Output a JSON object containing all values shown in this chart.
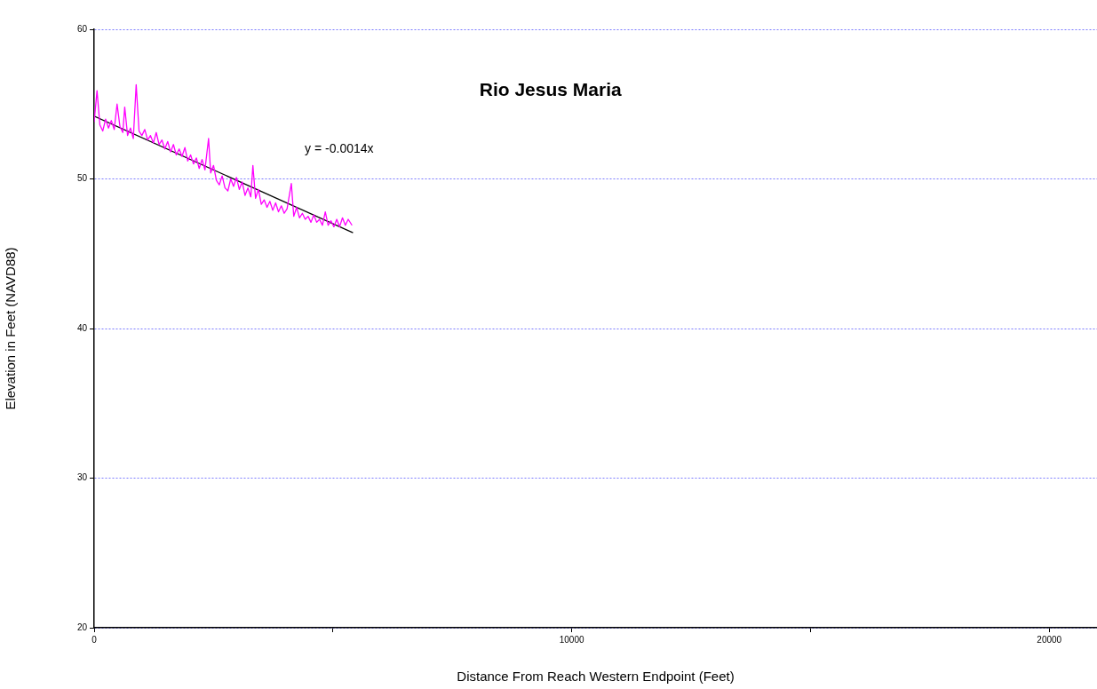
{
  "chart_data": {
    "type": "line",
    "title": "Rio Jesus Maria",
    "xlabel": "Distance From Reach Western Endpoint (Feet)",
    "ylabel": "Elevation in Feet (NAVD88)",
    "x": [
      0,
      60,
      120,
      180,
      240,
      300,
      360,
      420,
      480,
      540,
      600,
      640,
      700,
      760,
      820,
      880,
      940,
      1000,
      1060,
      1120,
      1180,
      1240,
      1300,
      1360,
      1420,
      1480,
      1540,
      1600,
      1660,
      1720,
      1780,
      1840,
      1900,
      1960,
      2020,
      2080,
      2140,
      2200,
      2260,
      2320,
      2396,
      2440,
      2500,
      2560,
      2620,
      2680,
      2740,
      2800,
      2860,
      2920,
      2980,
      3040,
      3100,
      3160,
      3220,
      3280,
      3324,
      3380,
      3440,
      3500,
      3560,
      3620,
      3680,
      3740,
      3800,
      3860,
      3920,
      3980,
      4040,
      4129,
      4180,
      4240,
      4300,
      4360,
      4420,
      4480,
      4540,
      4600,
      4660,
      4720,
      4780,
      4840,
      4900,
      4960,
      5020,
      5080,
      5140,
      5200,
      5260,
      5320,
      5400
    ],
    "series": [
      {
        "color": "#ff00ff",
        "values": [
          53.8,
          55.9,
          53.6,
          53.2,
          54.0,
          53.4,
          53.9,
          53.3,
          55.0,
          53.5,
          53.1,
          54.8,
          52.9,
          53.4,
          52.7,
          56.3,
          53.2,
          52.9,
          53.3,
          52.6,
          52.9,
          52.4,
          53.1,
          52.3,
          52.6,
          52.0,
          52.5,
          51.8,
          52.3,
          51.6,
          52.0,
          51.5,
          52.1,
          51.2,
          51.6,
          51.0,
          51.4,
          50.7,
          51.3,
          50.6,
          52.7,
          50.4,
          50.9,
          49.9,
          49.6,
          50.2,
          49.4,
          49.2,
          50.0,
          49.5,
          50.1,
          49.3,
          49.8,
          48.9,
          49.4,
          48.8,
          50.9,
          48.7,
          49.3,
          48.3,
          48.6,
          48.1,
          48.5,
          47.9,
          48.4,
          47.8,
          48.2,
          47.7,
          48.0,
          49.7,
          47.5,
          48.1,
          47.4,
          47.7,
          47.3,
          47.5,
          47.1,
          47.6,
          47.1,
          47.3,
          46.9,
          47.8,
          46.9,
          47.2,
          46.8,
          47.3,
          46.8,
          47.4,
          46.9,
          47.3,
          46.9
        ]
      },
      {
        "type": "line",
        "color": "#000000",
        "x": [
          0,
          5420
        ],
        "values": [
          54.2,
          46.4
        ]
      }
    ],
    "annotations": [
      "y = -0.0014x"
    ],
    "xlim": [
      0,
      21000
    ],
    "xticks": [
      0,
      {
        "value": 5000,
        "label": null
      },
      10000,
      {
        "value": 15000,
        "label": null
      },
      20000
    ],
    "ylim": [
      20,
      60
    ],
    "yticks": [
      20,
      30,
      40,
      50,
      60
    ],
    "grid": "y",
    "legend": false,
    "marker": "none",
    "line_style": "solid"
  }
}
